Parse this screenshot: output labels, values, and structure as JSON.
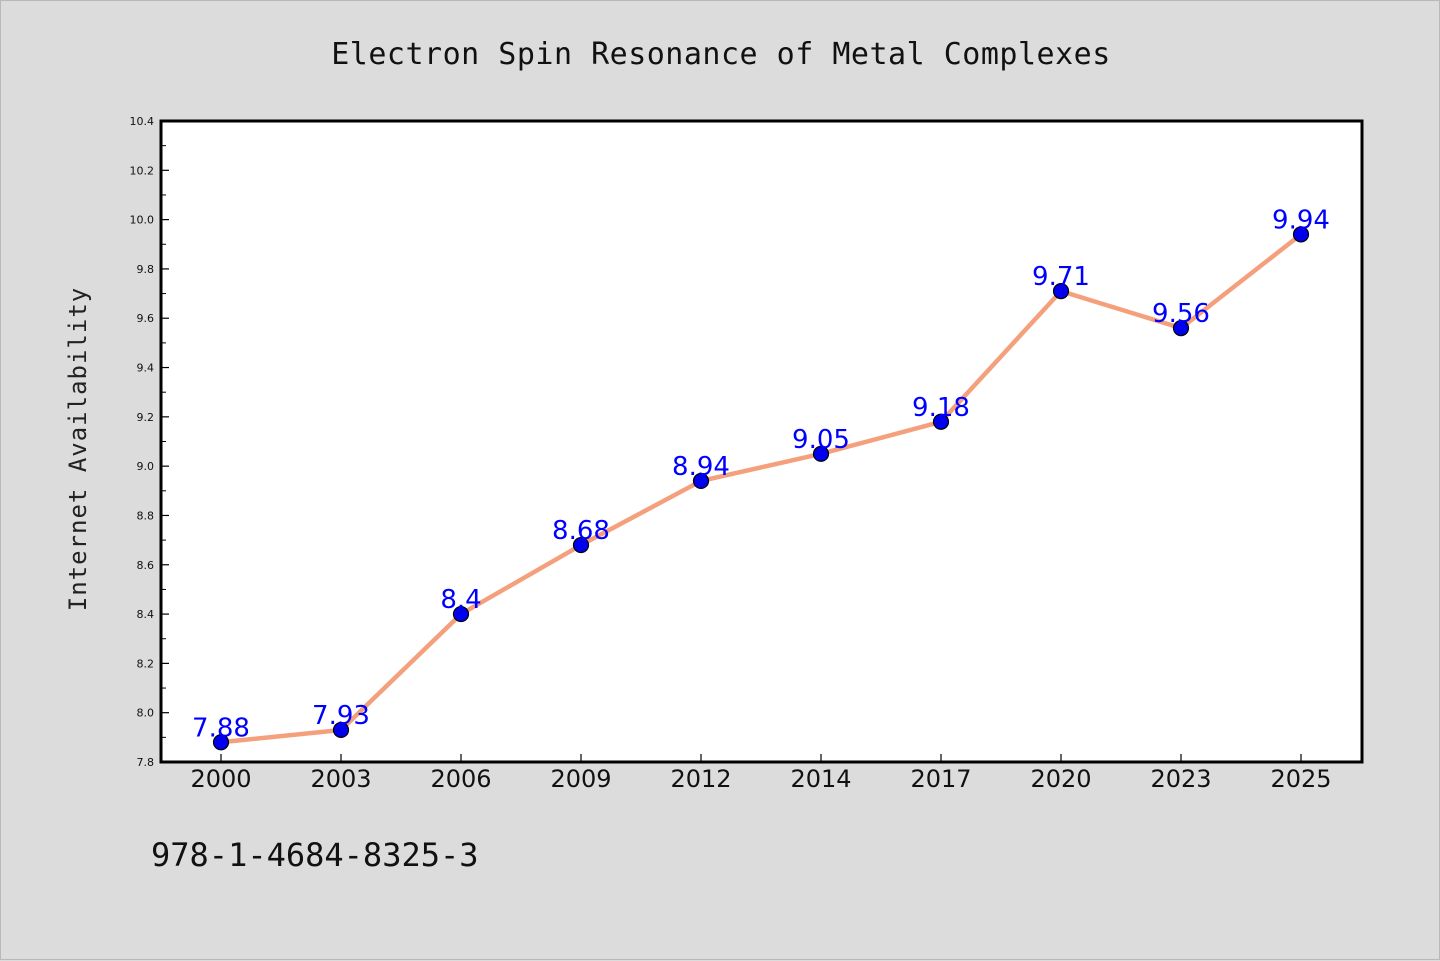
{
  "chart_data": {
    "type": "line",
    "title": "Electron Spin Resonance of Metal Complexes",
    "xlabel": "",
    "ylabel": "Internet Availability",
    "categories": [
      "2000",
      "2003",
      "2006",
      "2009",
      "2012",
      "2014",
      "2017",
      "2020",
      "2023",
      "2025"
    ],
    "series": [
      {
        "values": [
          7.88,
          7.93,
          8.4,
          8.68,
          8.94,
          9.05,
          9.18,
          9.71,
          9.56,
          9.94
        ],
        "data_labels": [
          "7.88",
          "7.93",
          "8.4",
          "8.68",
          "8.94",
          "9.05",
          "9.18",
          "9.71",
          "9.56",
          "9.94"
        ]
      }
    ],
    "ylim": [
      7.8,
      10.4
    ],
    "yticks": [
      "7.8",
      "8.0",
      "8.2",
      "8.4",
      "8.6",
      "8.8",
      "9.0",
      "9.2",
      "9.4",
      "9.6",
      "9.8",
      "10.0",
      "10.2",
      "10.4"
    ],
    "grid": false,
    "legend": "none",
    "colors": {
      "line": "#f4a07c",
      "marker": "#0000ee",
      "label": "#0000ff",
      "background": "#dcdcdc",
      "plot_area": "#ffffff"
    }
  },
  "footer": {
    "isbn": "978-1-4684-8325-3"
  }
}
